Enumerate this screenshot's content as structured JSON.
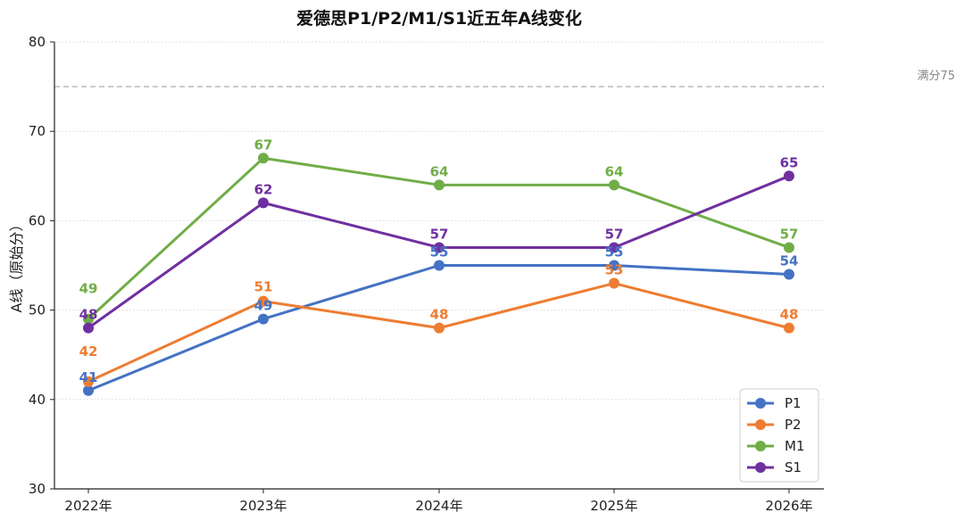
{
  "chart_data": {
    "type": "line",
    "title": "爱德思P1/P2/M1/S1近五年A线变化",
    "xlabel": "",
    "ylabel": "A线（原始分）",
    "categories": [
      "2022年",
      "2023年",
      "2024年",
      "2025年",
      "2026年"
    ],
    "ylim": [
      30,
      80
    ],
    "yticks": [
      30,
      40,
      50,
      60,
      70,
      80
    ],
    "grid": true,
    "legend_position": "bottom-right",
    "reference_line": {
      "value": 75,
      "label": "满分75",
      "color": "#bbbbbb"
    },
    "series": [
      {
        "name": "P1",
        "color": "#4472C4",
        "values": [
          41,
          49,
          55,
          55,
          54
        ]
      },
      {
        "name": "P2",
        "color": "#ED7D31",
        "values": [
          42,
          51,
          48,
          53,
          48
        ]
      },
      {
        "name": "M1",
        "color": "#70AD47",
        "values": [
          49,
          67,
          64,
          64,
          57
        ]
      },
      {
        "name": "S1",
        "color": "#7030A0",
        "values": [
          48,
          62,
          57,
          57,
          65
        ]
      }
    ]
  }
}
